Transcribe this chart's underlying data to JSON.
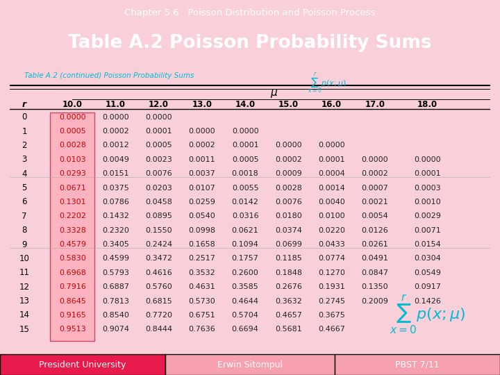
{
  "title_bar_text": "Chapter 5.6   Poisson Distribution and Poisson Process",
  "main_title": "Table A.2 Poisson Probability Sums",
  "subtitle": "Table A.2 (continued) Poisson Probability Sums",
  "footer_left": "President University",
  "footer_center": "Erwin Sitompul",
  "footer_right": "PBST 7/11",
  "mu_values": [
    "10.0",
    "11.0",
    "12.0",
    "13.0",
    "14.0",
    "15.0",
    "16.0",
    "17.0",
    "18.0"
  ],
  "r_values": [
    0,
    1,
    2,
    3,
    4,
    5,
    6,
    7,
    8,
    9,
    10,
    11,
    12,
    13,
    14,
    15
  ],
  "table_data": [
    [
      "0.0000",
      "0.0000",
      "0.0000",
      "",
      "",
      "",
      "",
      "",
      ""
    ],
    [
      "0.0005",
      "0.0002",
      "0.0001",
      "0.0000",
      "0.0000",
      "",
      "",
      "",
      ""
    ],
    [
      "0.0028",
      "0.0012",
      "0.0005",
      "0.0002",
      "0.0001",
      "0.0000",
      "0.0000",
      "",
      ""
    ],
    [
      "0.0103",
      "0.0049",
      "0.0023",
      "0.0011",
      "0.0005",
      "0.0002",
      "0.0001",
      "0.0000",
      "0.0000"
    ],
    [
      "0.0293",
      "0.0151",
      "0.0076",
      "0.0037",
      "0.0018",
      "0.0009",
      "0.0004",
      "0.0002",
      "0.0001"
    ],
    [
      "0.0671",
      "0.0375",
      "0.0203",
      "0.0107",
      "0.0055",
      "0.0028",
      "0.0014",
      "0.0007",
      "0.0003"
    ],
    [
      "0.1301",
      "0.0786",
      "0.0458",
      "0.0259",
      "0.0142",
      "0.0076",
      "0.0040",
      "0.0021",
      "0.0010"
    ],
    [
      "0.2202",
      "0.1432",
      "0.0895",
      "0.0540",
      "0.0316",
      "0.0180",
      "0.0100",
      "0.0054",
      "0.0029"
    ],
    [
      "0.3328",
      "0.2320",
      "0.1550",
      "0.0998",
      "0.0621",
      "0.0374",
      "0.0220",
      "0.0126",
      "0.0071"
    ],
    [
      "0.4579",
      "0.3405",
      "0.2424",
      "0.1658",
      "0.1094",
      "0.0699",
      "0.0433",
      "0.0261",
      "0.0154"
    ],
    [
      "0.5830",
      "0.4599",
      "0.3472",
      "0.2517",
      "0.1757",
      "0.1185",
      "0.0774",
      "0.0491",
      "0.0304"
    ],
    [
      "0.6968",
      "0.5793",
      "0.4616",
      "0.3532",
      "0.2600",
      "0.1848",
      "0.1270",
      "0.0847",
      "0.0549"
    ],
    [
      "0.7916",
      "0.6887",
      "0.5760",
      "0.4631",
      "0.3585",
      "0.2676",
      "0.1931",
      "0.1350",
      "0.0917"
    ],
    [
      "0.8645",
      "0.7813",
      "0.6815",
      "0.5730",
      "0.4644",
      "0.3632",
      "0.2745",
      "0.2009",
      "0.1426"
    ],
    [
      "0.9165",
      "0.8540",
      "0.7720",
      "0.6751",
      "0.5704",
      "0.4657",
      "0.3675",
      "",
      ""
    ],
    [
      "0.9513",
      "0.9074",
      "0.8444",
      "0.7636",
      "0.6694",
      "0.5681",
      "0.4667",
      "",
      ""
    ]
  ],
  "highlight_color": "#ffb3c1",
  "header_bg_dark": "#e8194b",
  "header_bg_light": "#f7617e",
  "title_bg": "#f04060",
  "main_bg": "#ffffff",
  "table_bg": "#ffffff",
  "footer_left_bg": "#e8194b",
  "footer_center_bg": "#f7a0b0",
  "footer_right_bg": "#f7a0b0",
  "text_white": "#ffffff",
  "text_dark": "#222222",
  "text_red": "#cc0000",
  "text_cyan": "#00bcd4",
  "row_separator_rs": [
    5,
    10
  ],
  "fig_bg": "#f9d0da"
}
